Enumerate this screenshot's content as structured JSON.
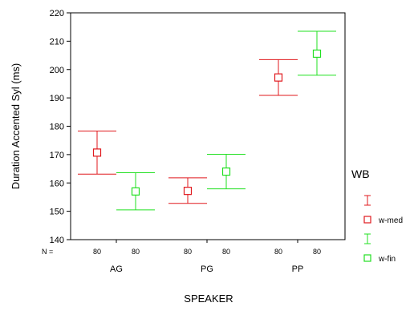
{
  "chart_data": {
    "type": "errorbar",
    "title": "",
    "xlabel": "SPEAKER",
    "ylabel": "Duration Accented Syl (ms)",
    "ylim": [
      140,
      220
    ],
    "yticks": [
      140,
      150,
      160,
      170,
      180,
      190,
      200,
      210,
      220
    ],
    "grid": false,
    "legend_position": "right",
    "categories": [
      "AG",
      "PG",
      "PP"
    ],
    "n_prefix": "N =",
    "series": [
      {
        "name": "w-med",
        "color": "#e0191e",
        "n": [
          80,
          80,
          80
        ],
        "mean": [
          170.7,
          157.2,
          197.2
        ],
        "lower": [
          163.1,
          152.8,
          190.9
        ],
        "upper": [
          178.3,
          161.8,
          203.5
        ]
      },
      {
        "name": "w-fin",
        "color": "#22e022",
        "n": [
          80,
          80,
          80
        ],
        "mean": [
          157.0,
          164.0,
          205.6
        ],
        "lower": [
          150.5,
          157.9,
          198.0
        ],
        "upper": [
          163.6,
          170.1,
          213.5
        ]
      }
    ],
    "legend": {
      "title": "WB",
      "entries": [
        {
          "marker": "errorbar-icon",
          "label": "",
          "color": "#e0191e"
        },
        {
          "marker": "square-icon",
          "label": "w-med",
          "color": "#e0191e"
        },
        {
          "marker": "errorbar-icon",
          "label": "",
          "color": "#22e022"
        },
        {
          "marker": "square-icon",
          "label": "w-fin",
          "color": "#22e022"
        }
      ]
    }
  }
}
